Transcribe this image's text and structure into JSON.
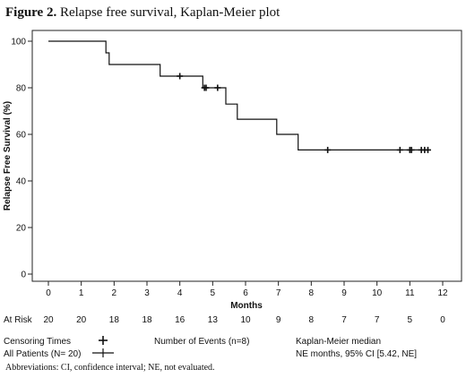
{
  "figure": {
    "label": "Figure 2.",
    "title": "Relapse free survival, Kaplan-Meier plot",
    "footnote": "Abbreviations: CI, confidence interval; NE, not evaluated."
  },
  "chart_data": {
    "type": "line",
    "title": "Relapse free survival, Kaplan-Meier plot",
    "xlabel": "Months",
    "ylabel": "Relapse Free Survival (%)",
    "xlim": [
      0,
      12
    ],
    "ylim": [
      0,
      100
    ],
    "x_ticks": [
      0,
      1,
      2,
      3,
      4,
      5,
      6,
      7,
      8,
      9,
      10,
      11,
      12
    ],
    "y_ticks": [
      0,
      20,
      40,
      60,
      80,
      100
    ],
    "grid": false,
    "series": [
      {
        "name": "All Patients (N= 20)",
        "step_points": [
          [
            0,
            100
          ],
          [
            1.75,
            100
          ],
          [
            1.75,
            95
          ],
          [
            1.85,
            95
          ],
          [
            1.85,
            90
          ],
          [
            3.4,
            90
          ],
          [
            3.4,
            85
          ],
          [
            4.7,
            85
          ],
          [
            4.7,
            80
          ],
          [
            5.4,
            80
          ],
          [
            5.4,
            73
          ],
          [
            5.75,
            73
          ],
          [
            5.75,
            66.5
          ],
          [
            6.95,
            66.5
          ],
          [
            6.95,
            60
          ],
          [
            7.6,
            60
          ],
          [
            7.6,
            53.3
          ],
          [
            11.6,
            53.3
          ]
        ],
        "censor_times": [
          [
            4.0,
            85
          ],
          [
            4.75,
            80
          ],
          [
            4.8,
            80
          ],
          [
            5.15,
            80
          ],
          [
            8.5,
            53.3
          ],
          [
            10.7,
            53.3
          ],
          [
            11.0,
            53.3
          ],
          [
            11.05,
            53.3
          ],
          [
            11.35,
            53.3
          ],
          [
            11.45,
            53.3
          ],
          [
            11.55,
            53.3
          ]
        ]
      }
    ],
    "at_risk": {
      "label": "At Risk",
      "times": [
        0,
        1,
        2,
        3,
        4,
        5,
        6,
        7,
        8,
        9,
        10,
        11,
        12
      ],
      "counts": [
        "20",
        "20",
        "18",
        "18",
        "16",
        "13",
        "10",
        "9",
        "8",
        "7",
        "7",
        "5",
        "0"
      ]
    },
    "legend": {
      "censoring_label": "Censoring Times",
      "series_label": "All Patients (N= 20)",
      "events_label": "Number of Events (n=8)",
      "km_label": "Kaplan-Meier median",
      "km_value": "NE months, 95% CI [5.42, NE]"
    }
  }
}
